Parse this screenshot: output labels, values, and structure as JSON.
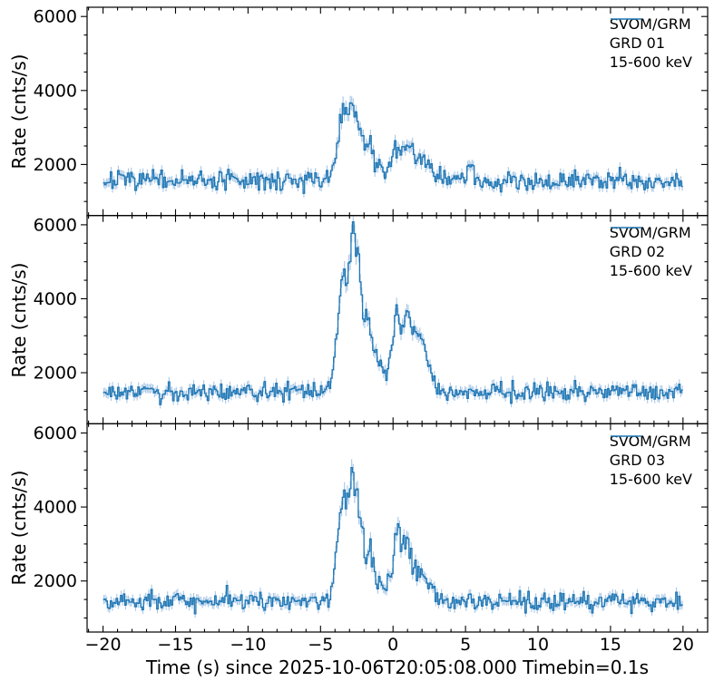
{
  "figure": {
    "xlabel": "Time (s) since 2025-10-06T20:05:08.000 Timebin=0.1s",
    "ylabel": "Rate (cnts/s)"
  },
  "chart_data": {
    "type": "line",
    "style": "step-histogram light curves with vertical error bars, 3 stacked panels sharing x axis",
    "title": "",
    "xlabel": "Time (s) since 2025-10-06T20:05:08.000 Timebin=0.1s",
    "ylabel": "Rate (cnts/s)",
    "xlim": [
      -21.1,
      21.7
    ],
    "ylim": [
      620,
      6250
    ],
    "x_ticks": [
      -20,
      -15,
      -10,
      -5,
      0,
      5,
      10,
      15,
      20
    ],
    "x_tick_labels": [
      "−20",
      "−15",
      "−10",
      "−5",
      "0",
      "5",
      "10",
      "15",
      "20"
    ],
    "y_ticks": [
      2000,
      4000,
      6000
    ],
    "y_tick_labels": [
      "2000",
      "4000",
      "6000"
    ],
    "x_minor_step": 1,
    "y_minor_step": 500,
    "t_start": -20,
    "t_end": 20,
    "bin_width_s": 0.1,
    "grid": false,
    "legend_position": "upper right",
    "line_color": "#1f77b4",
    "errorbar_color": "#a8c7e6",
    "error_model": "err = sqrt(rate * 0.1s) / 0.1s = 3.16 * sqrt(rate)",
    "panels": [
      {
        "legend": [
          "SVOM/GRM",
          "GRD 01",
          "15-600 keV"
        ],
        "baseline_rate": 1560,
        "peak_rate": 3800,
        "peak_time": -2.8,
        "envelope_keypoints": [
          [
            -4.6,
            1560
          ],
          [
            -4.2,
            1800
          ],
          [
            -3.9,
            2400
          ],
          [
            -3.6,
            3100
          ],
          [
            -3.4,
            3450
          ],
          [
            -3.2,
            3250
          ],
          [
            -3.0,
            3500
          ],
          [
            -2.8,
            3780
          ],
          [
            -2.6,
            3500
          ],
          [
            -2.4,
            3200
          ],
          [
            -2.2,
            2850
          ],
          [
            -2.0,
            2550
          ],
          [
            -1.8,
            2350
          ],
          [
            -1.55,
            2500
          ],
          [
            -1.3,
            2250
          ],
          [
            -1.0,
            2050
          ],
          [
            -0.7,
            1950
          ],
          [
            -0.4,
            1900
          ],
          [
            -0.1,
            2100
          ],
          [
            0.15,
            2550
          ],
          [
            0.4,
            2300
          ],
          [
            0.65,
            2600
          ],
          [
            0.9,
            2400
          ],
          [
            1.15,
            2500
          ],
          [
            1.4,
            2250
          ],
          [
            1.7,
            2150
          ],
          [
            2.0,
            2250
          ],
          [
            2.3,
            2050
          ],
          [
            2.7,
            1900
          ],
          [
            3.1,
            1750
          ],
          [
            3.6,
            1650
          ],
          [
            4.2,
            1600
          ],
          [
            5.0,
            1620
          ],
          [
            5.3,
            2150
          ],
          [
            5.6,
            1620
          ]
        ]
      },
      {
        "legend": [
          "SVOM/GRM",
          "GRD 02",
          "15-600 keV"
        ],
        "baseline_rate": 1480,
        "peak_rate": 5880,
        "peak_time": -2.7,
        "envelope_keypoints": [
          [
            -4.5,
            1480
          ],
          [
            -4.2,
            1850
          ],
          [
            -3.9,
            2900
          ],
          [
            -3.65,
            4000
          ],
          [
            -3.45,
            4650
          ],
          [
            -3.25,
            4300
          ],
          [
            -3.05,
            5000
          ],
          [
            -2.85,
            5600
          ],
          [
            -2.7,
            5880
          ],
          [
            -2.5,
            5300
          ],
          [
            -2.3,
            4700
          ],
          [
            -2.1,
            3900
          ],
          [
            -1.9,
            3450
          ],
          [
            -1.7,
            3600
          ],
          [
            -1.45,
            2950
          ],
          [
            -1.2,
            2500
          ],
          [
            -0.95,
            2200
          ],
          [
            -0.7,
            2000
          ],
          [
            -0.45,
            1950
          ],
          [
            -0.2,
            2250
          ],
          [
            0.05,
            3100
          ],
          [
            0.3,
            3750
          ],
          [
            0.55,
            3150
          ],
          [
            0.8,
            3400
          ],
          [
            1.05,
            3550
          ],
          [
            1.3,
            3150
          ],
          [
            1.55,
            3250
          ],
          [
            1.8,
            2850
          ],
          [
            2.05,
            2900
          ],
          [
            2.3,
            2700
          ],
          [
            2.5,
            2100
          ],
          [
            2.75,
            1700
          ],
          [
            3.1,
            1550
          ],
          [
            3.6,
            1500
          ]
        ]
      },
      {
        "legend": [
          "SVOM/GRM",
          "GRD 03",
          "15-600 keV"
        ],
        "baseline_rate": 1450,
        "peak_rate": 5000,
        "peak_time": -2.85,
        "envelope_keypoints": [
          [
            -4.5,
            1450
          ],
          [
            -4.2,
            1750
          ],
          [
            -3.9,
            2700
          ],
          [
            -3.65,
            3800
          ],
          [
            -3.45,
            4350
          ],
          [
            -3.25,
            4050
          ],
          [
            -3.05,
            4500
          ],
          [
            -2.85,
            5000
          ],
          [
            -2.65,
            4500
          ],
          [
            -2.45,
            4150
          ],
          [
            -2.25,
            3500
          ],
          [
            -2.05,
            2950
          ],
          [
            -1.85,
            2650
          ],
          [
            -1.6,
            2850
          ],
          [
            -1.35,
            2350
          ],
          [
            -1.1,
            2100
          ],
          [
            -0.85,
            1950
          ],
          [
            -0.6,
            1900
          ],
          [
            -0.35,
            2000
          ],
          [
            -0.1,
            2150
          ],
          [
            0.1,
            3200
          ],
          [
            0.3,
            3500
          ],
          [
            0.55,
            2850
          ],
          [
            0.8,
            3150
          ],
          [
            1.05,
            2950
          ],
          [
            1.3,
            2650
          ],
          [
            1.6,
            2450
          ],
          [
            1.9,
            2250
          ],
          [
            2.2,
            2050
          ],
          [
            2.6,
            1800
          ],
          [
            3.0,
            1600
          ],
          [
            3.5,
            1500
          ]
        ]
      }
    ]
  }
}
